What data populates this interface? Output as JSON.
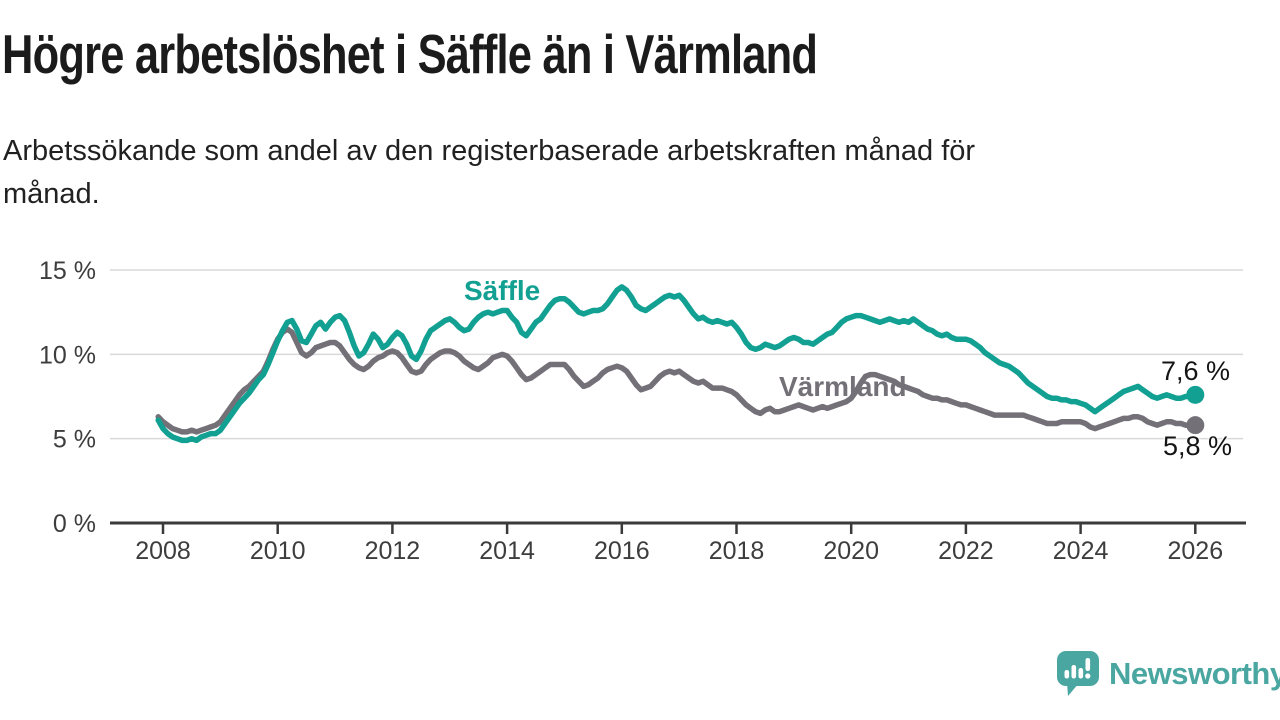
{
  "header": {
    "title": "Högre arbetslöshet i Säffle än i Värmland",
    "subtitle_line1": "Arbetssökande som andel av den registerbaserade arbetskraften månad för",
    "subtitle_line2": "månad."
  },
  "branding": {
    "logo_text": "Newsworthy",
    "logo_icon": "bar-chart-speech-bubble-icon",
    "logo_color": "#4aa6a0"
  },
  "colors": {
    "background": "#ffffff",
    "title_text": "#1b1b1b",
    "axis_text": "#3d3d3d",
    "axis_line": "#3a3a3a",
    "gridline": "#d9d9d9",
    "saffle_teal": "#12a092",
    "varmland_gray": "#737078"
  },
  "chart_data": {
    "type": "line",
    "title": "Högre arbetslöshet i Säffle än i Värmland",
    "subtitle": "Arbetssökande som andel av den registerbaserade arbetskraften månad för månad.",
    "unit": "percent",
    "frequency": "monthly",
    "x_start_year": 2007.9167,
    "x_end_year": 2026.0,
    "points_per_year": 12,
    "ylim": [
      0,
      15
    ],
    "grid": "horizontal",
    "legend_position": "inline-labels",
    "ytick_values": [
      0,
      5,
      10,
      15
    ],
    "ytick_labels": [
      "0 %",
      "5 %",
      "10 %",
      "15 %"
    ],
    "xtick_values": [
      2008,
      2010,
      2012,
      2014,
      2016,
      2018,
      2020,
      2022,
      2024,
      2026
    ],
    "xtick_labels": [
      "2008",
      "2010",
      "2012",
      "2014",
      "2016",
      "2018",
      "2020",
      "2022",
      "2024",
      "2026"
    ],
    "series": [
      {
        "name": "Säffle",
        "color": "#12a092",
        "end_value": 7.6,
        "end_value_label": "7,6 %",
        "values": [
          6.1,
          5.6,
          5.3,
          5.1,
          5.0,
          4.9,
          4.9,
          5.0,
          4.9,
          5.1,
          5.2,
          5.3,
          5.3,
          5.5,
          5.9,
          6.3,
          6.7,
          7.1,
          7.4,
          7.7,
          8.1,
          8.5,
          8.8,
          9.4,
          10.1,
          10.8,
          11.4,
          11.9,
          12.0,
          11.5,
          10.8,
          10.7,
          11.2,
          11.7,
          11.9,
          11.5,
          11.9,
          12.2,
          12.3,
          12.0,
          11.3,
          10.5,
          9.9,
          10.1,
          10.6,
          11.2,
          10.9,
          10.4,
          10.6,
          11.0,
          11.3,
          11.1,
          10.6,
          9.9,
          9.7,
          10.2,
          10.9,
          11.4,
          11.6,
          11.8,
          12.0,
          12.1,
          11.9,
          11.6,
          11.4,
          11.5,
          11.9,
          12.2,
          12.4,
          12.5,
          12.4,
          12.5,
          12.6,
          12.6,
          12.2,
          11.9,
          11.3,
          11.1,
          11.5,
          11.9,
          12.1,
          12.5,
          12.9,
          13.2,
          13.3,
          13.3,
          13.1,
          12.8,
          12.5,
          12.4,
          12.5,
          12.6,
          12.6,
          12.7,
          13.0,
          13.4,
          13.8,
          14.0,
          13.8,
          13.4,
          12.9,
          12.7,
          12.6,
          12.8,
          13.0,
          13.2,
          13.4,
          13.5,
          13.4,
          13.5,
          13.2,
          12.8,
          12.4,
          12.1,
          12.2,
          12.0,
          11.9,
          12.0,
          11.9,
          11.8,
          11.9,
          11.6,
          11.2,
          10.7,
          10.4,
          10.3,
          10.4,
          10.6,
          10.5,
          10.4,
          10.5,
          10.7,
          10.9,
          11.0,
          10.9,
          10.7,
          10.7,
          10.6,
          10.8,
          11.0,
          11.2,
          11.3,
          11.6,
          11.9,
          12.1,
          12.2,
          12.3,
          12.3,
          12.2,
          12.1,
          12.0,
          11.9,
          12.0,
          12.1,
          12.0,
          11.9,
          12.0,
          11.9,
          12.1,
          11.9,
          11.7,
          11.5,
          11.4,
          11.2,
          11.1,
          11.2,
          11.0,
          10.9,
          10.9,
          10.9,
          10.8,
          10.6,
          10.4,
          10.1,
          9.9,
          9.7,
          9.5,
          9.4,
          9.3,
          9.1,
          8.9,
          8.6,
          8.3,
          8.1,
          7.9,
          7.7,
          7.5,
          7.4,
          7.4,
          7.3,
          7.3,
          7.2,
          7.2,
          7.1,
          7.0,
          6.8,
          6.6,
          6.8,
          7.0,
          7.2,
          7.4,
          7.6,
          7.8,
          7.9,
          8.0,
          8.1,
          7.9,
          7.7,
          7.5,
          7.4,
          7.5,
          7.6,
          7.5,
          7.4,
          7.4,
          7.5,
          7.5,
          7.6
        ]
      },
      {
        "name": "Värmland",
        "color": "#737078",
        "end_value": 5.8,
        "end_value_label": "5,8 %",
        "values": [
          6.3,
          6.0,
          5.8,
          5.6,
          5.5,
          5.4,
          5.4,
          5.5,
          5.4,
          5.5,
          5.6,
          5.7,
          5.8,
          6.0,
          6.4,
          6.8,
          7.2,
          7.6,
          7.9,
          8.1,
          8.4,
          8.7,
          9.0,
          9.6,
          10.3,
          10.9,
          11.3,
          11.5,
          11.3,
          10.7,
          10.1,
          9.9,
          10.1,
          10.4,
          10.5,
          10.6,
          10.7,
          10.7,
          10.5,
          10.1,
          9.7,
          9.4,
          9.2,
          9.1,
          9.3,
          9.6,
          9.8,
          9.9,
          10.1,
          10.2,
          10.1,
          9.8,
          9.4,
          9.0,
          8.9,
          9.0,
          9.4,
          9.7,
          9.9,
          10.1,
          10.2,
          10.2,
          10.1,
          9.9,
          9.6,
          9.4,
          9.2,
          9.1,
          9.3,
          9.5,
          9.8,
          9.9,
          10.0,
          9.9,
          9.6,
          9.2,
          8.8,
          8.5,
          8.6,
          8.8,
          9.0,
          9.2,
          9.4,
          9.4,
          9.4,
          9.4,
          9.1,
          8.7,
          8.4,
          8.1,
          8.2,
          8.4,
          8.6,
          8.9,
          9.1,
          9.2,
          9.3,
          9.2,
          9.0,
          8.6,
          8.2,
          7.9,
          8.0,
          8.1,
          8.4,
          8.7,
          8.9,
          9.0,
          8.9,
          9.0,
          8.8,
          8.6,
          8.4,
          8.3,
          8.4,
          8.2,
          8.0,
          8.0,
          8.0,
          7.9,
          7.8,
          7.6,
          7.3,
          7.0,
          6.8,
          6.6,
          6.5,
          6.7,
          6.8,
          6.6,
          6.6,
          6.7,
          6.8,
          6.9,
          7.0,
          6.9,
          6.8,
          6.7,
          6.8,
          6.9,
          6.8,
          6.9,
          7.0,
          7.1,
          7.2,
          7.4,
          7.8,
          8.3,
          8.7,
          8.8,
          8.8,
          8.7,
          8.6,
          8.5,
          8.4,
          8.2,
          8.1,
          8.0,
          7.9,
          7.8,
          7.6,
          7.5,
          7.4,
          7.4,
          7.3,
          7.3,
          7.2,
          7.1,
          7.0,
          7.0,
          6.9,
          6.8,
          6.7,
          6.6,
          6.5,
          6.4,
          6.4,
          6.4,
          6.4,
          6.4,
          6.4,
          6.4,
          6.3,
          6.2,
          6.1,
          6.0,
          5.9,
          5.9,
          5.9,
          6.0,
          6.0,
          6.0,
          6.0,
          6.0,
          5.9,
          5.7,
          5.6,
          5.7,
          5.8,
          5.9,
          6.0,
          6.1,
          6.2,
          6.2,
          6.3,
          6.3,
          6.2,
          6.0,
          5.9,
          5.8,
          5.9,
          6.0,
          6.0,
          5.9,
          5.9,
          5.8,
          5.8,
          5.8
        ]
      }
    ]
  }
}
